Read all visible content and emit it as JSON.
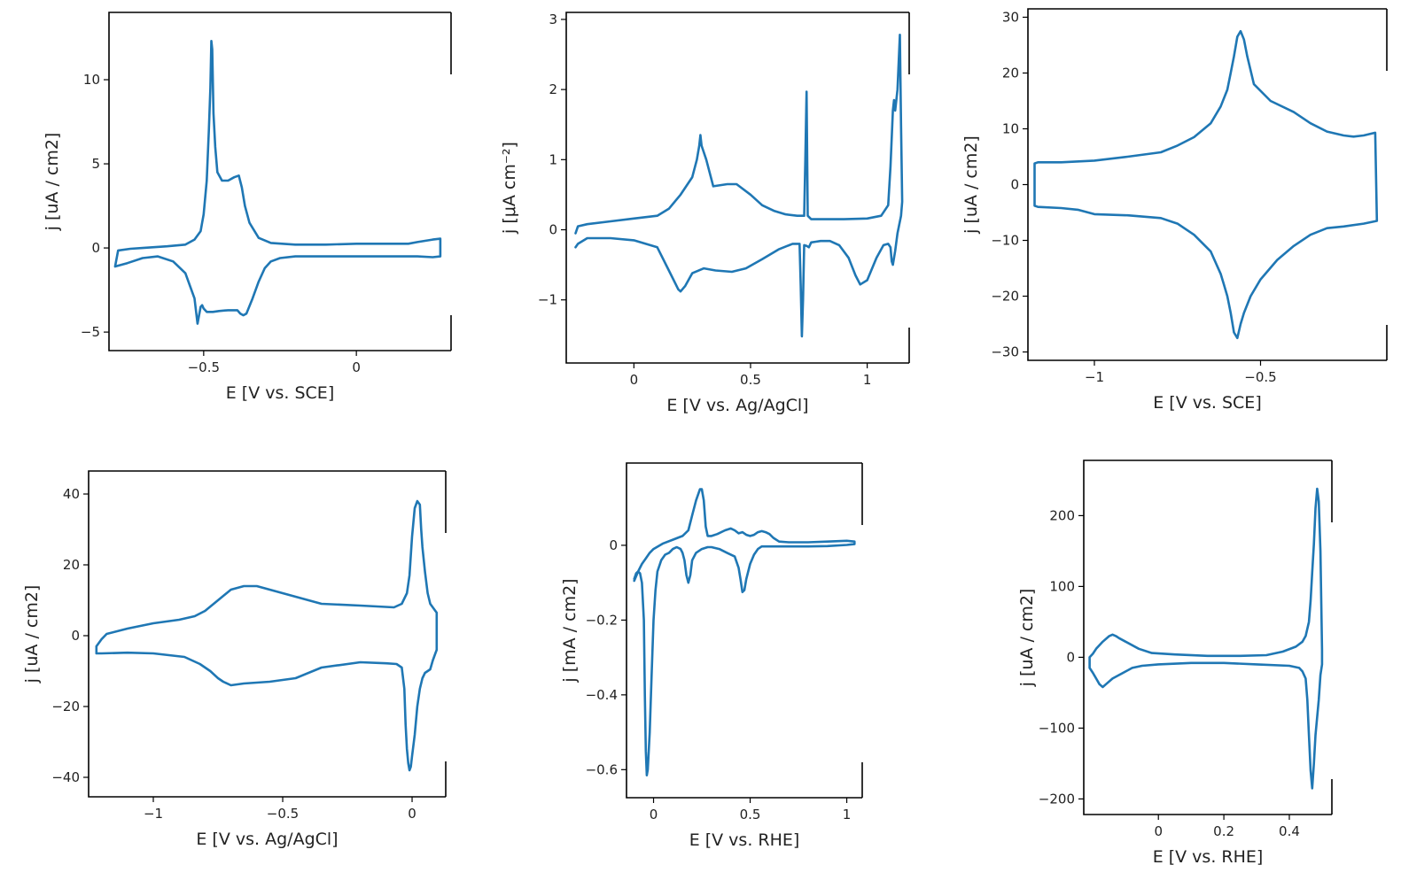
{
  "colors": {
    "line": "#1f77b4",
    "frame": "#000000",
    "text": "#222222"
  },
  "chart_data": [
    {
      "type": "line",
      "xlabel": "E [V vs. SCE]",
      "ylabel": "j [uA / cm2]",
      "xticks": [
        -0.5,
        0
      ],
      "xtick_labels": [
        "−0.5",
        "0"
      ],
      "yticks": [
        10,
        5,
        0,
        -5
      ],
      "ytick_labels": [
        "10",
        "5",
        "0",
        "−5"
      ],
      "xlim": [
        -0.81,
        0.31
      ],
      "ylim": [
        -6.1,
        14.0
      ],
      "series": [
        {
          "x": [
            -0.79,
            -0.78,
            -0.74,
            -0.7,
            -0.62,
            -0.56,
            -0.53,
            -0.51,
            -0.5,
            -0.49,
            -0.483,
            -0.478,
            -0.475,
            -0.472,
            -0.468,
            -0.462,
            -0.455,
            -0.44,
            -0.42,
            -0.4,
            -0.385,
            -0.375,
            -0.365,
            -0.35,
            -0.32,
            -0.28,
            -0.2,
            -0.1,
            0,
            0.1,
            0.17,
            0.2,
            0.25,
            0.275,
            0.275,
            0.25,
            0.2,
            0.1,
            0,
            -0.1,
            -0.2,
            -0.25,
            -0.28,
            -0.3,
            -0.32,
            -0.34,
            -0.36,
            -0.37,
            -0.38,
            -0.39,
            -0.42,
            -0.45,
            -0.47,
            -0.49,
            -0.5,
            -0.505,
            -0.51,
            -0.52,
            -0.53,
            -0.56,
            -0.6,
            -0.65,
            -0.7,
            -0.75,
            -0.79
          ],
          "y": [
            -1.1,
            -0.15,
            -0.05,
            0.0,
            0.1,
            0.2,
            0.5,
            1.0,
            2.0,
            4.0,
            7.0,
            9.5,
            12.3,
            11.8,
            8.0,
            6.0,
            4.5,
            4.0,
            4.0,
            4.2,
            4.3,
            3.6,
            2.5,
            1.5,
            0.6,
            0.3,
            0.2,
            0.2,
            0.25,
            0.25,
            0.25,
            0.35,
            0.5,
            0.55,
            -0.5,
            -0.55,
            -0.5,
            -0.5,
            -0.5,
            -0.5,
            -0.5,
            -0.6,
            -0.8,
            -1.2,
            -2.0,
            -3.0,
            -3.9,
            -4.0,
            -3.9,
            -3.7,
            -3.7,
            -3.75,
            -3.8,
            -3.8,
            -3.6,
            -3.4,
            -3.5,
            -4.5,
            -3.0,
            -1.5,
            -0.8,
            -0.5,
            -0.6,
            -0.9,
            -1.1
          ]
        }
      ]
    },
    {
      "type": "line",
      "xlabel": "E [V vs. Ag/AgCl]",
      "ylabel": "j [μA cm⁻²]",
      "xticks": [
        0,
        0.5,
        1
      ],
      "xtick_labels": [
        "0",
        "0.5",
        "1"
      ],
      "yticks": [
        3,
        2,
        1,
        0,
        -1
      ],
      "ytick_labels": [
        "3",
        "2",
        "1",
        "0",
        "−1"
      ],
      "xlim": [
        -0.29,
        1.18
      ],
      "ylim": [
        -1.9,
        3.1
      ],
      "series": [
        {
          "x": [
            -0.25,
            -0.24,
            -0.2,
            -0.1,
            0,
            0.1,
            0.15,
            0.2,
            0.25,
            0.27,
            0.28,
            0.285,
            0.29,
            0.31,
            0.34,
            0.4,
            0.44,
            0.5,
            0.55,
            0.6,
            0.65,
            0.7,
            0.72,
            0.73,
            0.735,
            0.74,
            0.745,
            0.76,
            0.8,
            0.9,
            1.0,
            1.06,
            1.09,
            1.1,
            1.11,
            1.115,
            1.12,
            1.13,
            1.14,
            1.145,
            1.15,
            1.145,
            1.13,
            1.12,
            1.11,
            1.105,
            1.1,
            1.09,
            1.07,
            1.04,
            1.0,
            0.97,
            0.95,
            0.92,
            0.88,
            0.84,
            0.8,
            0.78,
            0.76,
            0.75,
            0.74,
            0.73,
            0.725,
            0.72,
            0.715,
            0.71,
            0.68,
            0.62,
            0.55,
            0.48,
            0.42,
            0.35,
            0.3,
            0.25,
            0.22,
            0.2,
            0.19,
            0.15,
            0.1,
            0,
            -0.1,
            -0.2,
            -0.24,
            -0.25
          ],
          "y": [
            -0.05,
            0.05,
            0.08,
            0.12,
            0.16,
            0.2,
            0.3,
            0.5,
            0.75,
            1.0,
            1.2,
            1.35,
            1.2,
            1.0,
            0.62,
            0.65,
            0.65,
            0.5,
            0.35,
            0.27,
            0.22,
            0.2,
            0.2,
            0.2,
            1.0,
            1.97,
            0.2,
            0.15,
            0.15,
            0.15,
            0.16,
            0.2,
            0.35,
            0.9,
            1.7,
            1.85,
            1.7,
            2.0,
            2.78,
            1.5,
            0.4,
            0.2,
            -0.05,
            -0.3,
            -0.5,
            -0.45,
            -0.25,
            -0.2,
            -0.22,
            -0.4,
            -0.72,
            -0.78,
            -0.65,
            -0.4,
            -0.22,
            -0.16,
            -0.16,
            -0.17,
            -0.18,
            -0.25,
            -0.23,
            -0.22,
            -1.0,
            -1.52,
            -0.8,
            -0.2,
            -0.2,
            -0.28,
            -0.42,
            -0.55,
            -0.6,
            -0.58,
            -0.55,
            -0.62,
            -0.8,
            -0.88,
            -0.85,
            -0.58,
            -0.25,
            -0.15,
            -0.12,
            -0.12,
            -0.2,
            -0.25
          ]
        }
      ]
    },
    {
      "type": "line",
      "xlabel": "E [V vs. SCE]",
      "ylabel": "j [uA / cm2]",
      "xticks": [
        -1,
        -0.5
      ],
      "xtick_labels": [
        "−1",
        "−0.5"
      ],
      "yticks": [
        30,
        20,
        10,
        0,
        -10,
        -20,
        -30
      ],
      "ytick_labels": [
        "30",
        "20",
        "10",
        "0",
        "−10",
        "−20",
        "−30"
      ],
      "xlim": [
        -1.2,
        -0.12
      ],
      "ylim": [
        -31.5,
        31.5
      ],
      "series": [
        {
          "x": [
            -1.17,
            -1.1,
            -1.0,
            -0.9,
            -0.8,
            -0.75,
            -0.7,
            -0.65,
            -0.62,
            -0.6,
            -0.59,
            -0.58,
            -0.57,
            -0.56,
            -0.55,
            -0.54,
            -0.52,
            -0.47,
            -0.4,
            -0.35,
            -0.3,
            -0.25,
            -0.22,
            -0.19,
            -0.155,
            -0.15,
            -0.19,
            -0.25,
            -0.3,
            -0.35,
            -0.4,
            -0.45,
            -0.5,
            -0.53,
            -0.55,
            -0.56,
            -0.57,
            -0.58,
            -0.59,
            -0.6,
            -0.61,
            -0.62,
            -0.65,
            -0.7,
            -0.75,
            -0.8,
            -0.9,
            -1.0,
            -1.05,
            -1.1,
            -1.17,
            -1.18,
            -1.18,
            -1.17
          ],
          "y": [
            4.0,
            4.0,
            4.3,
            5.0,
            5.8,
            7.0,
            8.5,
            11.0,
            14.0,
            17.0,
            20.0,
            23.0,
            26.5,
            27.5,
            26.0,
            23.0,
            18.0,
            15.0,
            13.0,
            11.0,
            9.5,
            8.8,
            8.6,
            8.8,
            9.3,
            -6.5,
            -7.0,
            -7.5,
            -7.8,
            -9.0,
            -11.0,
            -13.5,
            -17.0,
            -20.0,
            -23.0,
            -25.0,
            -27.5,
            -26.5,
            -23.0,
            -20.0,
            -18.0,
            -16.0,
            -12.0,
            -9.0,
            -7.0,
            -6.0,
            -5.5,
            -5.3,
            -4.5,
            -4.2,
            -4.0,
            -3.8,
            3.8,
            4.0
          ]
        }
      ]
    },
    {
      "type": "line",
      "xlabel": "E [V vs. Ag/AgCl]",
      "ylabel": "j [uA / cm2]",
      "xticks": [
        -1,
        -0.5,
        0
      ],
      "xtick_labels": [
        "−1",
        "−0.5",
        "0"
      ],
      "yticks": [
        40,
        20,
        0,
        -20,
        -40
      ],
      "ytick_labels": [
        "40",
        "20",
        "0",
        "−20",
        "−40"
      ],
      "xlim": [
        -1.25,
        0.13
      ],
      "ylim": [
        -45.5,
        46.5
      ],
      "series": [
        {
          "x": [
            -1.22,
            -1.2,
            -1.18,
            -1.1,
            -1.0,
            -0.9,
            -0.84,
            -0.8,
            -0.75,
            -0.7,
            -0.65,
            -0.6,
            -0.5,
            -0.35,
            -0.2,
            -0.07,
            -0.04,
            -0.02,
            -0.01,
            0,
            0.01,
            0.02,
            0.03,
            0.035,
            0.04,
            0.05,
            0.06,
            0.07,
            0.08,
            0.09,
            0.095,
            0.095,
            0.09,
            0.08,
            0.07,
            0.06,
            0.05,
            0.04,
            0.03,
            0.02,
            0.01,
            0,
            -0.005,
            -0.01,
            -0.015,
            -0.02,
            -0.025,
            -0.03,
            -0.04,
            -0.06,
            -0.1,
            -0.2,
            -0.35,
            -0.45,
            -0.55,
            -0.65,
            -0.7,
            -0.73,
            -0.75,
            -0.78,
            -0.82,
            -0.88,
            -1.0,
            -1.1,
            -1.2,
            -1.22,
            -1.22
          ],
          "y": [
            -3.0,
            -1.0,
            0.5,
            2.0,
            3.5,
            4.5,
            5.5,
            7.0,
            10.0,
            13.0,
            14.0,
            14.0,
            12.0,
            9.0,
            8.5,
            8.0,
            9.0,
            12.0,
            17.0,
            28.0,
            36.0,
            38.0,
            37.0,
            30.0,
            25.0,
            18.0,
            12.0,
            9.0,
            8.0,
            7.0,
            6.5,
            -4.0,
            -5.0,
            -7.0,
            -9.5,
            -10.0,
            -10.5,
            -12.0,
            -15.0,
            -20.0,
            -28.0,
            -34.0,
            -37.0,
            -38.0,
            -36.0,
            -32.0,
            -25.0,
            -15.0,
            -9.0,
            -8.0,
            -7.8,
            -7.5,
            -9.0,
            -12.0,
            -13.0,
            -13.5,
            -14.0,
            -13.0,
            -12.0,
            -10.0,
            -8.0,
            -6.0,
            -5.0,
            -4.8,
            -5.0,
            -5.0,
            -3.0
          ]
        }
      ]
    },
    {
      "type": "line",
      "xlabel": "E [V vs. RHE]",
      "ylabel": "j [mA / cm2]",
      "xticks": [
        0,
        0.5,
        1
      ],
      "xtick_labels": [
        "0",
        "0.5",
        "1"
      ],
      "yticks": [
        0,
        -0.2,
        -0.4,
        -0.6
      ],
      "ytick_labels": [
        "0",
        "−0.2",
        "−0.4",
        "−0.6"
      ],
      "xlim": [
        -0.14,
        1.08
      ],
      "ylim": [
        -0.675,
        0.22
      ],
      "series": [
        {
          "x": [
            -0.1,
            -0.08,
            -0.06,
            -0.04,
            -0.02,
            0,
            0.05,
            0.1,
            0.15,
            0.18,
            0.2,
            0.22,
            0.24,
            0.25,
            0.26,
            0.27,
            0.28,
            0.3,
            0.33,
            0.37,
            0.4,
            0.42,
            0.44,
            0.46,
            0.48,
            0.5,
            0.52,
            0.54,
            0.56,
            0.58,
            0.6,
            0.62,
            0.65,
            0.7,
            0.8,
            0.9,
            1.0,
            1.04,
            1.04,
            1.0,
            0.9,
            0.8,
            0.7,
            0.6,
            0.56,
            0.54,
            0.52,
            0.5,
            0.48,
            0.47,
            0.46,
            0.45,
            0.44,
            0.42,
            0.38,
            0.34,
            0.3,
            0.28,
            0.25,
            0.22,
            0.2,
            0.19,
            0.18,
            0.17,
            0.16,
            0.15,
            0.14,
            0.12,
            0.1,
            0.08,
            0.06,
            0.04,
            0.02,
            0.01,
            0,
            -0.01,
            -0.02,
            -0.03,
            -0.035,
            -0.04,
            -0.045,
            -0.05,
            -0.06,
            -0.07,
            -0.08,
            -0.09,
            -0.1
          ],
          "y": [
            -0.095,
            -0.07,
            -0.05,
            -0.035,
            -0.02,
            -0.01,
            0.005,
            0.015,
            0.025,
            0.04,
            0.08,
            0.12,
            0.15,
            0.15,
            0.12,
            0.05,
            0.025,
            0.025,
            0.03,
            0.04,
            0.045,
            0.04,
            0.032,
            0.035,
            0.028,
            0.025,
            0.028,
            0.035,
            0.038,
            0.035,
            0.03,
            0.02,
            0.01,
            0.008,
            0.008,
            0.01,
            0.012,
            0.01,
            0.003,
            0.001,
            -0.002,
            -0.003,
            -0.003,
            -0.003,
            -0.003,
            -0.01,
            -0.025,
            -0.05,
            -0.09,
            -0.12,
            -0.125,
            -0.09,
            -0.06,
            -0.03,
            -0.02,
            -0.01,
            -0.005,
            -0.005,
            -0.01,
            -0.02,
            -0.04,
            -0.08,
            -0.1,
            -0.08,
            -0.04,
            -0.02,
            -0.01,
            -0.005,
            -0.01,
            -0.02,
            -0.025,
            -0.04,
            -0.07,
            -0.12,
            -0.2,
            -0.35,
            -0.5,
            -0.6,
            -0.615,
            -0.55,
            -0.4,
            -0.2,
            -0.1,
            -0.075,
            -0.07,
            -0.075,
            -0.09
          ]
        }
      ]
    },
    {
      "type": "line",
      "xlabel": "E [V vs. RHE]",
      "ylabel": "j [uA / cm2]",
      "xticks": [
        0,
        0.2,
        0.4
      ],
      "xtick_labels": [
        "0",
        "0.2",
        "0.4"
      ],
      "yticks": [
        200,
        100,
        0,
        -100,
        -200
      ],
      "ytick_labels": [
        "200",
        "100",
        "0",
        "−100",
        "−200"
      ],
      "xlim": [
        -0.228,
        0.53
      ],
      "ylim": [
        -222,
        278
      ],
      "series": [
        {
          "x": [
            -0.21,
            -0.2,
            -0.19,
            -0.17,
            -0.15,
            -0.14,
            -0.13,
            -0.12,
            -0.1,
            -0.06,
            -0.02,
            0.05,
            0.15,
            0.25,
            0.33,
            0.38,
            0.42,
            0.44,
            0.45,
            0.46,
            0.465,
            0.47,
            0.475,
            0.48,
            0.485,
            0.49,
            0.495,
            0.5,
            0.5,
            0.495,
            0.49,
            0.48,
            0.475,
            0.47,
            0.465,
            0.46,
            0.455,
            0.45,
            0.44,
            0.43,
            0.4,
            0.3,
            0.2,
            0.1,
            0,
            -0.05,
            -0.08,
            -0.1,
            -0.12,
            -0.14,
            -0.16,
            -0.17,
            -0.18,
            -0.19,
            -0.2,
            -0.21,
            -0.21
          ],
          "y": [
            0,
            5,
            12,
            22,
            30,
            32,
            30,
            27,
            22,
            12,
            6,
            4,
            2,
            2,
            3,
            8,
            15,
            22,
            30,
            50,
            80,
            120,
            160,
            210,
            238,
            220,
            150,
            10,
            -10,
            -25,
            -60,
            -110,
            -150,
            -185,
            -160,
            -110,
            -60,
            -30,
            -20,
            -15,
            -12,
            -10,
            -8,
            -8,
            -10,
            -12,
            -15,
            -20,
            -25,
            -30,
            -38,
            -42,
            -38,
            -30,
            -22,
            -15,
            0
          ]
        }
      ]
    }
  ]
}
